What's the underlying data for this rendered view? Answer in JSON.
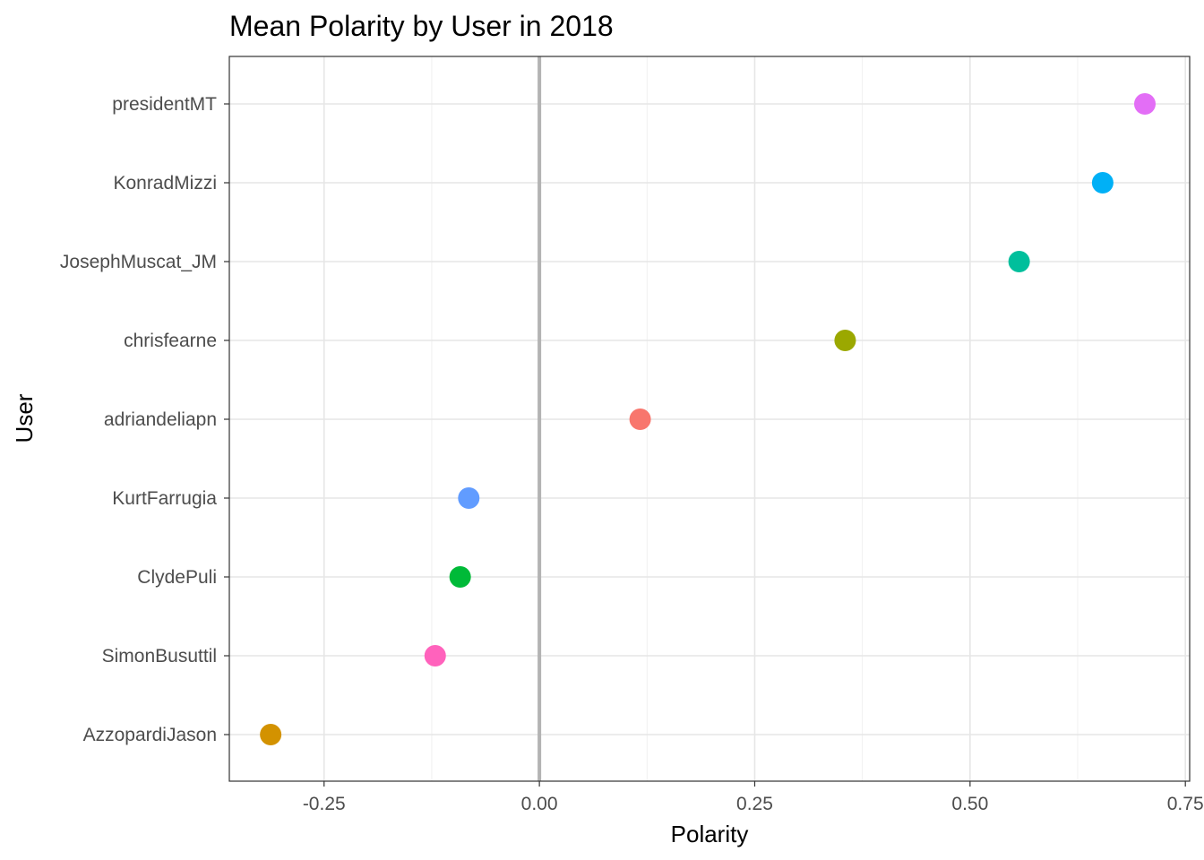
{
  "chart_data": {
    "type": "scatter",
    "title": "Mean Polarity by User in 2018",
    "xlabel": "Polarity",
    "ylabel": "User",
    "xlim": [
      -0.36,
      0.755
    ],
    "xticks": [
      -0.25,
      0.0,
      0.25,
      0.5,
      0.75
    ],
    "xtick_labels": [
      "-0.25",
      "0.00",
      "0.25",
      "0.50",
      "0.75"
    ],
    "reference_line_x": 0,
    "grid": true,
    "legend": "none",
    "categories": [
      "presidentMT",
      "KonradMizzi",
      "JosephMuscat_JM",
      "chrisfearne",
      "adriandeliapn",
      "KurtFarrugia",
      "ClydePuli",
      "SimonBusuttil",
      "AzzopardiJason"
    ],
    "values": [
      0.703,
      0.654,
      0.557,
      0.355,
      0.117,
      -0.082,
      -0.092,
      -0.121,
      -0.312
    ],
    "colors": [
      "#E36EF6",
      "#00B0F6",
      "#00BF9C",
      "#9BA800",
      "#F8766D",
      "#619CFF",
      "#00BA38",
      "#FF62BC",
      "#D39200"
    ]
  }
}
